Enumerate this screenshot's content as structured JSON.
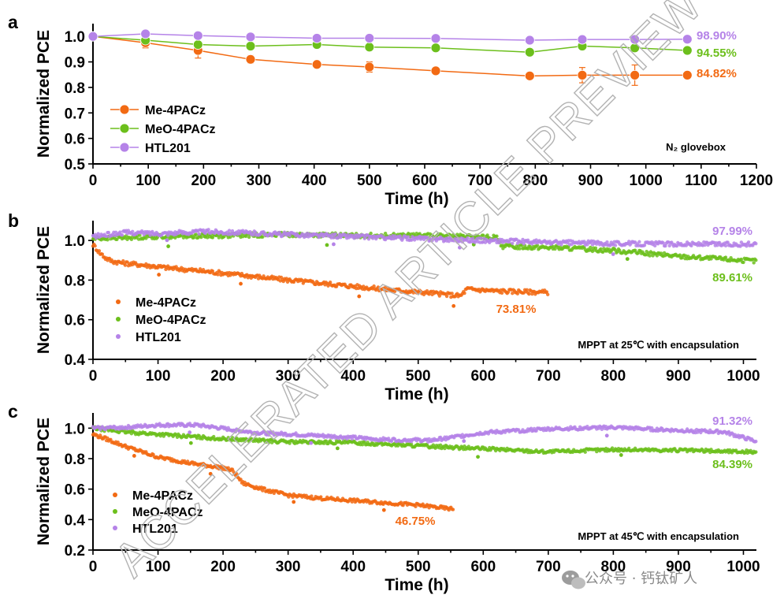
{
  "colors": {
    "orange": "#f26a13",
    "green": "#6cbf1c",
    "purple": "#b583e8"
  },
  "watermark": "ACCELERATED ARTICLE PREVIEW",
  "brand_text": "公众号 · 钙钛矿人",
  "brand_icon": "wechat-icon",
  "chart_data": [
    {
      "panel": "a",
      "type": "line",
      "ylabel": "Normalized PCE",
      "xlabel": "Time (h)",
      "xlim": [
        0,
        1200
      ],
      "ylim": [
        0.5,
        1.05
      ],
      "xticks": [
        "0",
        "100",
        "200",
        "300",
        "400",
        "500",
        "600",
        "700",
        "800",
        "900",
        "1000",
        "1100",
        "1200"
      ],
      "yticks": [
        "0.5",
        "0.6",
        "0.7",
        "0.8",
        "0.9",
        "1.0"
      ],
      "condition": "N₂ glovebox",
      "legend_position": "bottom-left",
      "series": [
        {
          "name": "Me-4PACz",
          "color_key": "orange",
          "end_label": "84.82%",
          "x": [
            0,
            95,
            190,
            285,
            405,
            500,
            620,
            790,
            885,
            980,
            1075
          ],
          "y": [
            1.0,
            0.975,
            0.945,
            0.91,
            0.89,
            0.88,
            0.865,
            0.845,
            0.848,
            0.848,
            0.848
          ],
          "err": [
            0,
            0.02,
            0.03,
            0.015,
            0.01,
            0.02,
            0.005,
            0.01,
            0.03,
            0.04,
            0
          ]
        },
        {
          "name": "MeO-4PACz",
          "color_key": "green",
          "end_label": "94.55%",
          "x": [
            0,
            95,
            190,
            285,
            405,
            500,
            620,
            790,
            885,
            980,
            1075
          ],
          "y": [
            1.0,
            0.985,
            0.968,
            0.962,
            0.968,
            0.958,
            0.955,
            0.938,
            0.962,
            0.955,
            0.945
          ],
          "err": [
            0,
            0.01,
            0.008,
            0.005,
            0.005,
            0.01,
            0.005,
            0.008,
            0.005,
            0.005,
            0
          ]
        },
        {
          "name": "HTL201",
          "color_key": "purple",
          "end_label": "98.90%",
          "x": [
            0,
            95,
            190,
            285,
            405,
            500,
            620,
            790,
            885,
            980,
            1075
          ],
          "y": [
            1.0,
            1.01,
            1.003,
            0.998,
            0.993,
            0.993,
            0.992,
            0.985,
            0.988,
            0.988,
            0.989
          ],
          "err": [
            0,
            0.005,
            0.004,
            0.004,
            0.003,
            0.003,
            0.003,
            0.004,
            0.003,
            0.003,
            0
          ]
        }
      ]
    },
    {
      "panel": "b",
      "type": "scatter",
      "ylabel": "Normalized PCE",
      "xlabel": "Time (h)",
      "xlim": [
        0,
        1020
      ],
      "ylim": [
        0.4,
        1.1
      ],
      "xticks": [
        "0",
        "100",
        "200",
        "300",
        "400",
        "500",
        "600",
        "700",
        "800",
        "900",
        "1000"
      ],
      "yticks": [
        "0.4",
        "0.6",
        "0.8",
        "1.0"
      ],
      "condition": "MPPT at 25℃ with encapsulation",
      "legend_position": "bottom-left",
      "series": [
        {
          "name": "Me-4PACz",
          "color_key": "orange",
          "end_label": "73.81%",
          "x": [
            0,
            10,
            20,
            30,
            50,
            80,
            120,
            170,
            230,
            300,
            380,
            460,
            520,
            565,
            575,
            620,
            700
          ],
          "y": [
            0.98,
            0.94,
            0.91,
            0.895,
            0.885,
            0.875,
            0.86,
            0.845,
            0.825,
            0.8,
            0.775,
            0.75,
            0.735,
            0.72,
            0.755,
            0.745,
            0.738
          ]
        },
        {
          "name": "MeO-4PACz",
          "color_key": "green",
          "end_label": "89.61%",
          "x": [
            0,
            100,
            200,
            300,
            400,
            500,
            620,
            630,
            700,
            800,
            900,
            1020
          ],
          "y": [
            1.01,
            1.02,
            1.025,
            1.03,
            1.025,
            1.025,
            1.015,
            0.97,
            0.965,
            0.95,
            0.92,
            0.896
          ]
        },
        {
          "name": "HTL201",
          "color_key": "purple",
          "end_label": "97.99%",
          "x": [
            0,
            50,
            100,
            180,
            300,
            400,
            500,
            600,
            700,
            800,
            900,
            1020
          ],
          "y": [
            1.02,
            1.04,
            1.035,
            1.045,
            1.03,
            1.02,
            1.01,
            1.0,
            0.99,
            0.985,
            0.982,
            0.98
          ]
        }
      ]
    },
    {
      "panel": "c",
      "type": "scatter",
      "ylabel": "Normalized PCE",
      "xlabel": "Time (h)",
      "xlim": [
        0,
        1020
      ],
      "ylim": [
        0.2,
        1.1
      ],
      "xticks": [
        "0",
        "100",
        "200",
        "300",
        "400",
        "500",
        "600",
        "700",
        "800",
        "900",
        "1000"
      ],
      "yticks": [
        "0.2",
        "0.4",
        "0.6",
        "0.8",
        "1.0"
      ],
      "condition": "MPPT at 45℃ with encapsulation",
      "legend_position": "bottom-left",
      "series": [
        {
          "name": "Me-4PACz",
          "color_key": "orange",
          "end_label": "46.75%",
          "x": [
            0,
            20,
            50,
            100,
            150,
            200,
            215,
            230,
            260,
            300,
            350,
            400,
            450,
            500,
            555
          ],
          "y": [
            0.96,
            0.93,
            0.88,
            0.81,
            0.77,
            0.74,
            0.72,
            0.64,
            0.6,
            0.56,
            0.54,
            0.525,
            0.51,
            0.495,
            0.4675
          ]
        },
        {
          "name": "MeO-4PACz",
          "color_key": "green",
          "end_label": "84.39%",
          "x": [
            0,
            50,
            100,
            200,
            300,
            400,
            500,
            600,
            700,
            800,
            900,
            1020
          ],
          "y": [
            1.0,
            0.975,
            0.96,
            0.93,
            0.91,
            0.905,
            0.885,
            0.865,
            0.845,
            0.86,
            0.855,
            0.844
          ]
        },
        {
          "name": "HTL201",
          "color_key": "purple",
          "end_label": "91.32%",
          "x": [
            0,
            50,
            100,
            160,
            250,
            350,
            450,
            520,
            600,
            700,
            800,
            900,
            970,
            1020
          ],
          "y": [
            1.0,
            1.005,
            1.02,
            1.02,
            0.97,
            0.95,
            0.925,
            0.92,
            0.97,
            0.995,
            1.005,
            0.985,
            0.975,
            0.913
          ]
        }
      ]
    }
  ]
}
